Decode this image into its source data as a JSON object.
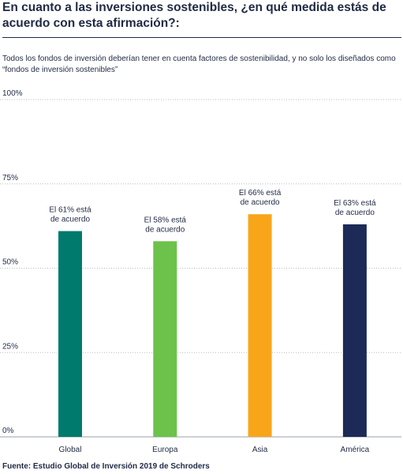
{
  "title": "En cuanto a las inversiones sostenibles, ¿en qué medida estás de acuerdo con esta afirmación?:",
  "subtitle": "Todos los fondos de inversión deberían tener en cuenta factores de sostenibilidad, y no solo los diseñados como “fondos de inversión sostenibles”",
  "source": "Fuente: Estudio Global de Inversión 2019 de Schroders",
  "chart_data": {
    "type": "bar",
    "categories": [
      "Global",
      "Europa",
      "Asia",
      "América"
    ],
    "values": [
      61,
      58,
      66,
      63
    ],
    "data_labels": [
      [
        "El 61% está",
        "de acuerdo"
      ],
      [
        "El 58% está",
        "de acuerdo"
      ],
      [
        "El 66% está",
        "de acuerdo"
      ],
      [
        "El 63% está",
        "de acuerdo"
      ]
    ],
    "colors": [
      "#007a6c",
      "#6cc24a",
      "#f9a51a",
      "#1d2a57"
    ],
    "ylim": [
      0,
      100
    ],
    "yticks": [
      0,
      25,
      50,
      75,
      100
    ],
    "ytick_labels": [
      "0%",
      "25%",
      "50%",
      "75%",
      "100%"
    ],
    "grid": true,
    "xlabel": "",
    "ylabel": ""
  }
}
